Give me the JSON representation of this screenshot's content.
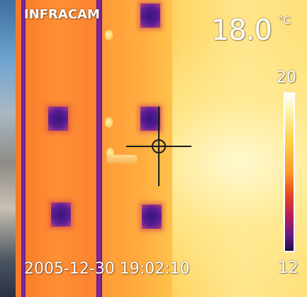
{
  "camera": {
    "brand": "INFRACAM",
    "spot_temperature": "18.0",
    "temperature_unit": "°C",
    "timestamp": "2005-12-30 19:02:10"
  },
  "scale": {
    "max_label": "20",
    "min_label": "12"
  },
  "colors": {
    "hot": "#ffffff",
    "warm": "#ffd04a",
    "mid": "#ff9a2a",
    "cool": "#b81c57",
    "cold": "#1c0c46"
  }
}
